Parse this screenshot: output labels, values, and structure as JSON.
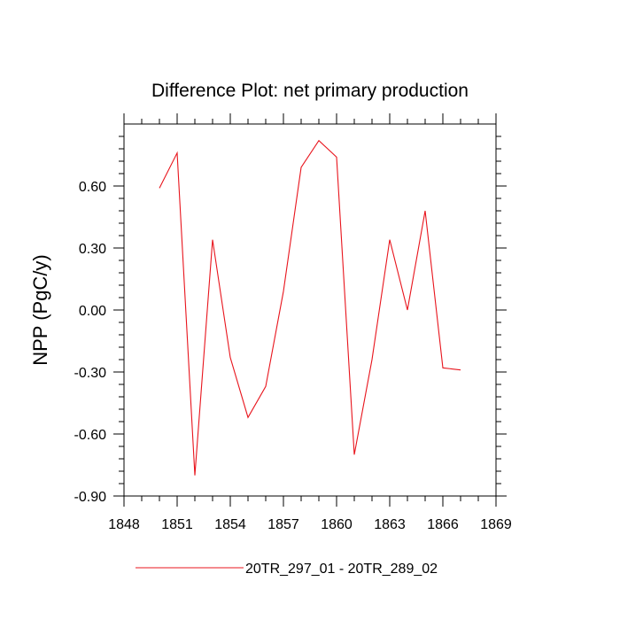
{
  "chart_data": {
    "type": "line",
    "title": "Difference Plot: net primary production",
    "xlabel": "",
    "ylabel": "NPP  (PgC/y)",
    "xlim": [
      1848,
      1869
    ],
    "ylim": [
      -0.9,
      0.9
    ],
    "xticks": [
      1848,
      1851,
      1854,
      1857,
      1860,
      1863,
      1866,
      1869
    ],
    "xtick_labels": [
      "1848",
      "1851",
      "1854",
      "1857",
      "1860",
      "1863",
      "1866",
      "1869"
    ],
    "yticks": [
      -0.9,
      -0.6,
      -0.3,
      0.0,
      0.3,
      0.6
    ],
    "ytick_labels": [
      "-0.90",
      "-0.60",
      "-0.30",
      "0.00",
      "0.30",
      "0.60"
    ],
    "grid": false,
    "legend_position": "bottom",
    "series": [
      {
        "name": "20TR_297_01 - 20TR_289_02",
        "color": "#e8141c",
        "x": [
          1850,
          1851,
          1852,
          1853,
          1854,
          1855,
          1856,
          1857,
          1858,
          1859,
          1860,
          1861,
          1862,
          1863,
          1864,
          1865,
          1866,
          1867
        ],
        "y": [
          0.59,
          0.76,
          -0.8,
          0.34,
          -0.23,
          -0.52,
          -0.37,
          0.09,
          0.69,
          0.82,
          0.74,
          -0.7,
          -0.24,
          0.34,
          0.0,
          0.48,
          -0.28,
          -0.29
        ]
      }
    ]
  }
}
